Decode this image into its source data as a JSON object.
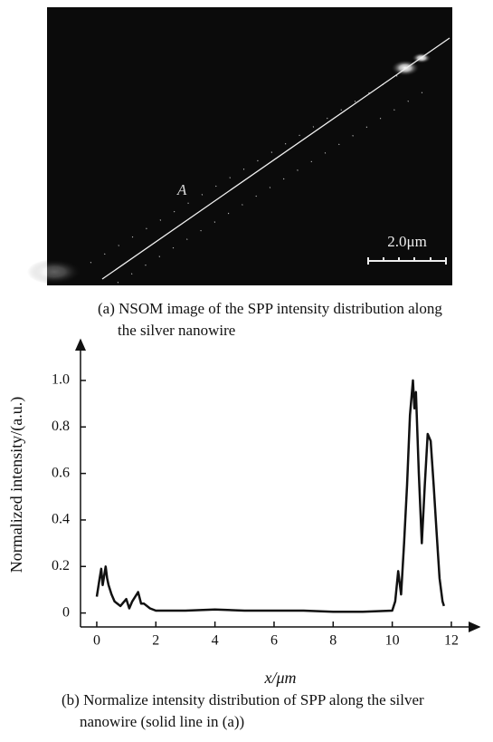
{
  "figure_a": {
    "label": "A",
    "scale_bar": "2.0μm",
    "caption": [
      "(a) NSOM image of the SPP intensity distribution along",
      "the silver nanowire"
    ]
  },
  "chart_data": {
    "type": "line",
    "x_label": "x/μm",
    "y_label": "Normalized intensity/(a.u.)",
    "x": [
      0,
      0.1,
      0.15,
      0.2,
      0.3,
      0.35,
      0.4,
      0.5,
      0.6,
      0.8,
      1.0,
      1.1,
      1.2,
      1.4,
      1.5,
      1.6,
      1.8,
      2.0,
      3,
      4,
      5,
      6,
      7,
      8,
      9,
      10,
      10.1,
      10.2,
      10.3,
      10.4,
      10.5,
      10.6,
      10.7,
      10.75,
      10.8,
      10.9,
      11.0,
      11.1,
      11.2,
      11.3,
      11.4,
      11.5,
      11.6,
      11.7,
      11.75
    ],
    "values": [
      0.07,
      0.15,
      0.19,
      0.12,
      0.2,
      0.15,
      0.12,
      0.08,
      0.05,
      0.03,
      0.06,
      0.02,
      0.05,
      0.09,
      0.04,
      0.04,
      0.02,
      0.01,
      0.01,
      0.015,
      0.01,
      0.01,
      0.01,
      0.005,
      0.005,
      0.01,
      0.05,
      0.18,
      0.08,
      0.3,
      0.55,
      0.85,
      1.0,
      0.88,
      0.95,
      0.6,
      0.3,
      0.55,
      0.77,
      0.74,
      0.55,
      0.35,
      0.15,
      0.05,
      0.03
    ],
    "color": "#111111",
    "xlim": [
      -0.55,
      12.95
    ],
    "ylim": [
      -0.06,
      1.175
    ],
    "xticks": [
      0,
      2,
      4,
      6,
      8,
      10,
      12
    ],
    "yticks": [
      0,
      0.2,
      0.4,
      0.6,
      0.8,
      {
        "value": 1,
        "label": "1.0"
      }
    ],
    "caption": [
      "(b) Normalize intensity distribution of SPP along the silver",
      "nanowire (solid  line in (a))"
    ]
  }
}
